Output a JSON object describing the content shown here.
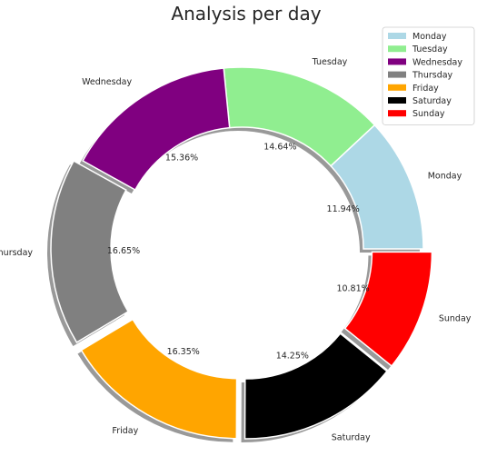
{
  "chart_data": {
    "type": "pie",
    "style": "donut",
    "title": "Analysis per day",
    "categories": [
      "Monday",
      "Tuesday",
      "Wednesday",
      "Thursday",
      "Friday",
      "Saturday",
      "Sunday"
    ],
    "values": [
      11.94,
      14.64,
      15.36,
      16.65,
      16.35,
      14.25,
      10.81
    ],
    "value_labels": [
      "11.94%",
      "14.64%",
      "15.36%",
      "16.65%",
      "16.35%",
      "14.25%",
      "10.81%"
    ],
    "colors": [
      "#add8e6",
      "#90ee90",
      "#800080",
      "#808080",
      "#ffa500",
      "#000000",
      "#ff0000"
    ],
    "exploded": [
      "Sunday",
      "Saturday",
      "Friday",
      "Thursday"
    ],
    "shadow": true,
    "legend": {
      "position": "top-right",
      "entries": [
        "Monday",
        "Tuesday",
        "Wednesday",
        "Thursday",
        "Friday",
        "Saturday",
        "Sunday"
      ]
    }
  }
}
